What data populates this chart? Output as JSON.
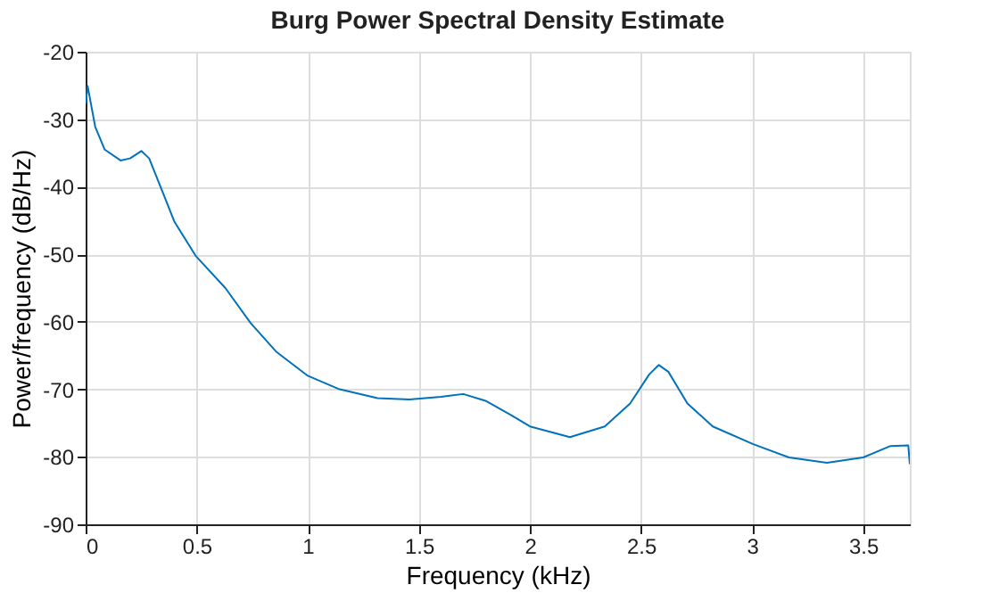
{
  "chart_data": {
    "type": "line",
    "title": "Burg Power Spectral Density Estimate",
    "xlabel": "Frequency (kHz)",
    "ylabel": "Power/frequency (dB/Hz)",
    "xlim": [
      0,
      3.71
    ],
    "xticks": [
      0,
      0.5,
      1,
      1.5,
      2,
      2.5,
      3,
      3.5
    ],
    "ylim": [
      -90,
      -20
    ],
    "yticks": [
      -90,
      -80,
      -70,
      -60,
      -50,
      -40,
      -30,
      -20
    ],
    "grid": true,
    "line_style": "solid",
    "series": [
      {
        "color": "#0072bd",
        "x": [
          0,
          0.009,
          0.043,
          0.086,
          0.157,
          0.2,
          0.251,
          0.286,
          0.343,
          0.4,
          0.497,
          0.629,
          0.743,
          0.857,
          1.0,
          1.143,
          1.314,
          1.457,
          1.6,
          1.7,
          1.8,
          1.914,
          2.0,
          2.18,
          2.337,
          2.451,
          2.537,
          2.58,
          2.623,
          2.709,
          2.823,
          3.003,
          3.166,
          3.337,
          3.5,
          3.623,
          3.703,
          3.71
        ],
        "values": [
          -27.7,
          -25.1,
          -31.1,
          -34.5,
          -36.1,
          -35.8,
          -34.7,
          -35.8,
          -40.5,
          -45.2,
          -50.3,
          -55.0,
          -60.2,
          -64.4,
          -68.0,
          -70.0,
          -71.3,
          -71.5,
          -71.1,
          -70.7,
          -71.7,
          -73.8,
          -75.5,
          -77.1,
          -75.5,
          -72.1,
          -67.8,
          -66.4,
          -67.4,
          -72.1,
          -75.5,
          -78.1,
          -80.1,
          -80.9,
          -80.1,
          -78.4,
          -78.3,
          -81.1
        ]
      }
    ]
  }
}
